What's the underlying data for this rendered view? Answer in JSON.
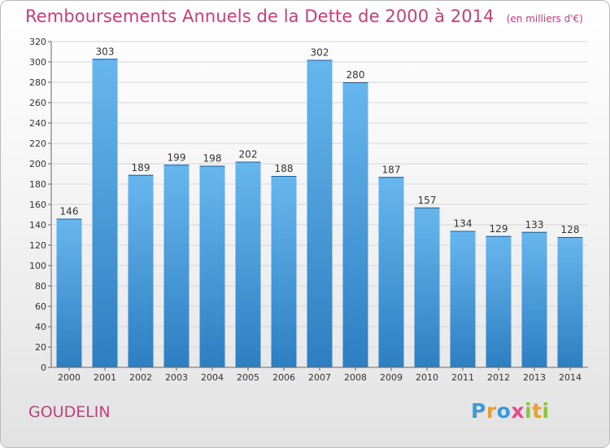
{
  "title": "Remboursements Annuels de la Dette de 2000 à 2014",
  "subtitle": "(en milliers d'€)",
  "commune": "GOUDELIN",
  "brand": {
    "text": "Proxiti",
    "letters": [
      "P",
      "r",
      "o",
      "x",
      "i",
      "t",
      "i"
    ],
    "colors": [
      "#3a9ad9",
      "#e6a03a",
      "#3a9ad9",
      "#e64b8c",
      "#8cc43f",
      "#e6a03a",
      "#8cc43f"
    ]
  },
  "colors": {
    "bar_top": "#67b6ee",
    "bar_bottom": "#2d7fc2",
    "title": "#c53f7c"
  },
  "chart_data": {
    "type": "bar",
    "title": "Remboursements Annuels de la Dette de 2000 à 2014",
    "xlabel": "",
    "ylabel": "",
    "ylim": [
      0,
      320
    ],
    "ytick_step": 20,
    "grid": true,
    "categories": [
      "2000",
      "2001",
      "2002",
      "2003",
      "2004",
      "2005",
      "2006",
      "2007",
      "2008",
      "2009",
      "2010",
      "2011",
      "2012",
      "2013",
      "2014"
    ],
    "values": [
      146,
      303,
      189,
      199,
      198,
      202,
      188,
      302,
      280,
      187,
      157,
      134,
      129,
      133,
      128
    ]
  }
}
